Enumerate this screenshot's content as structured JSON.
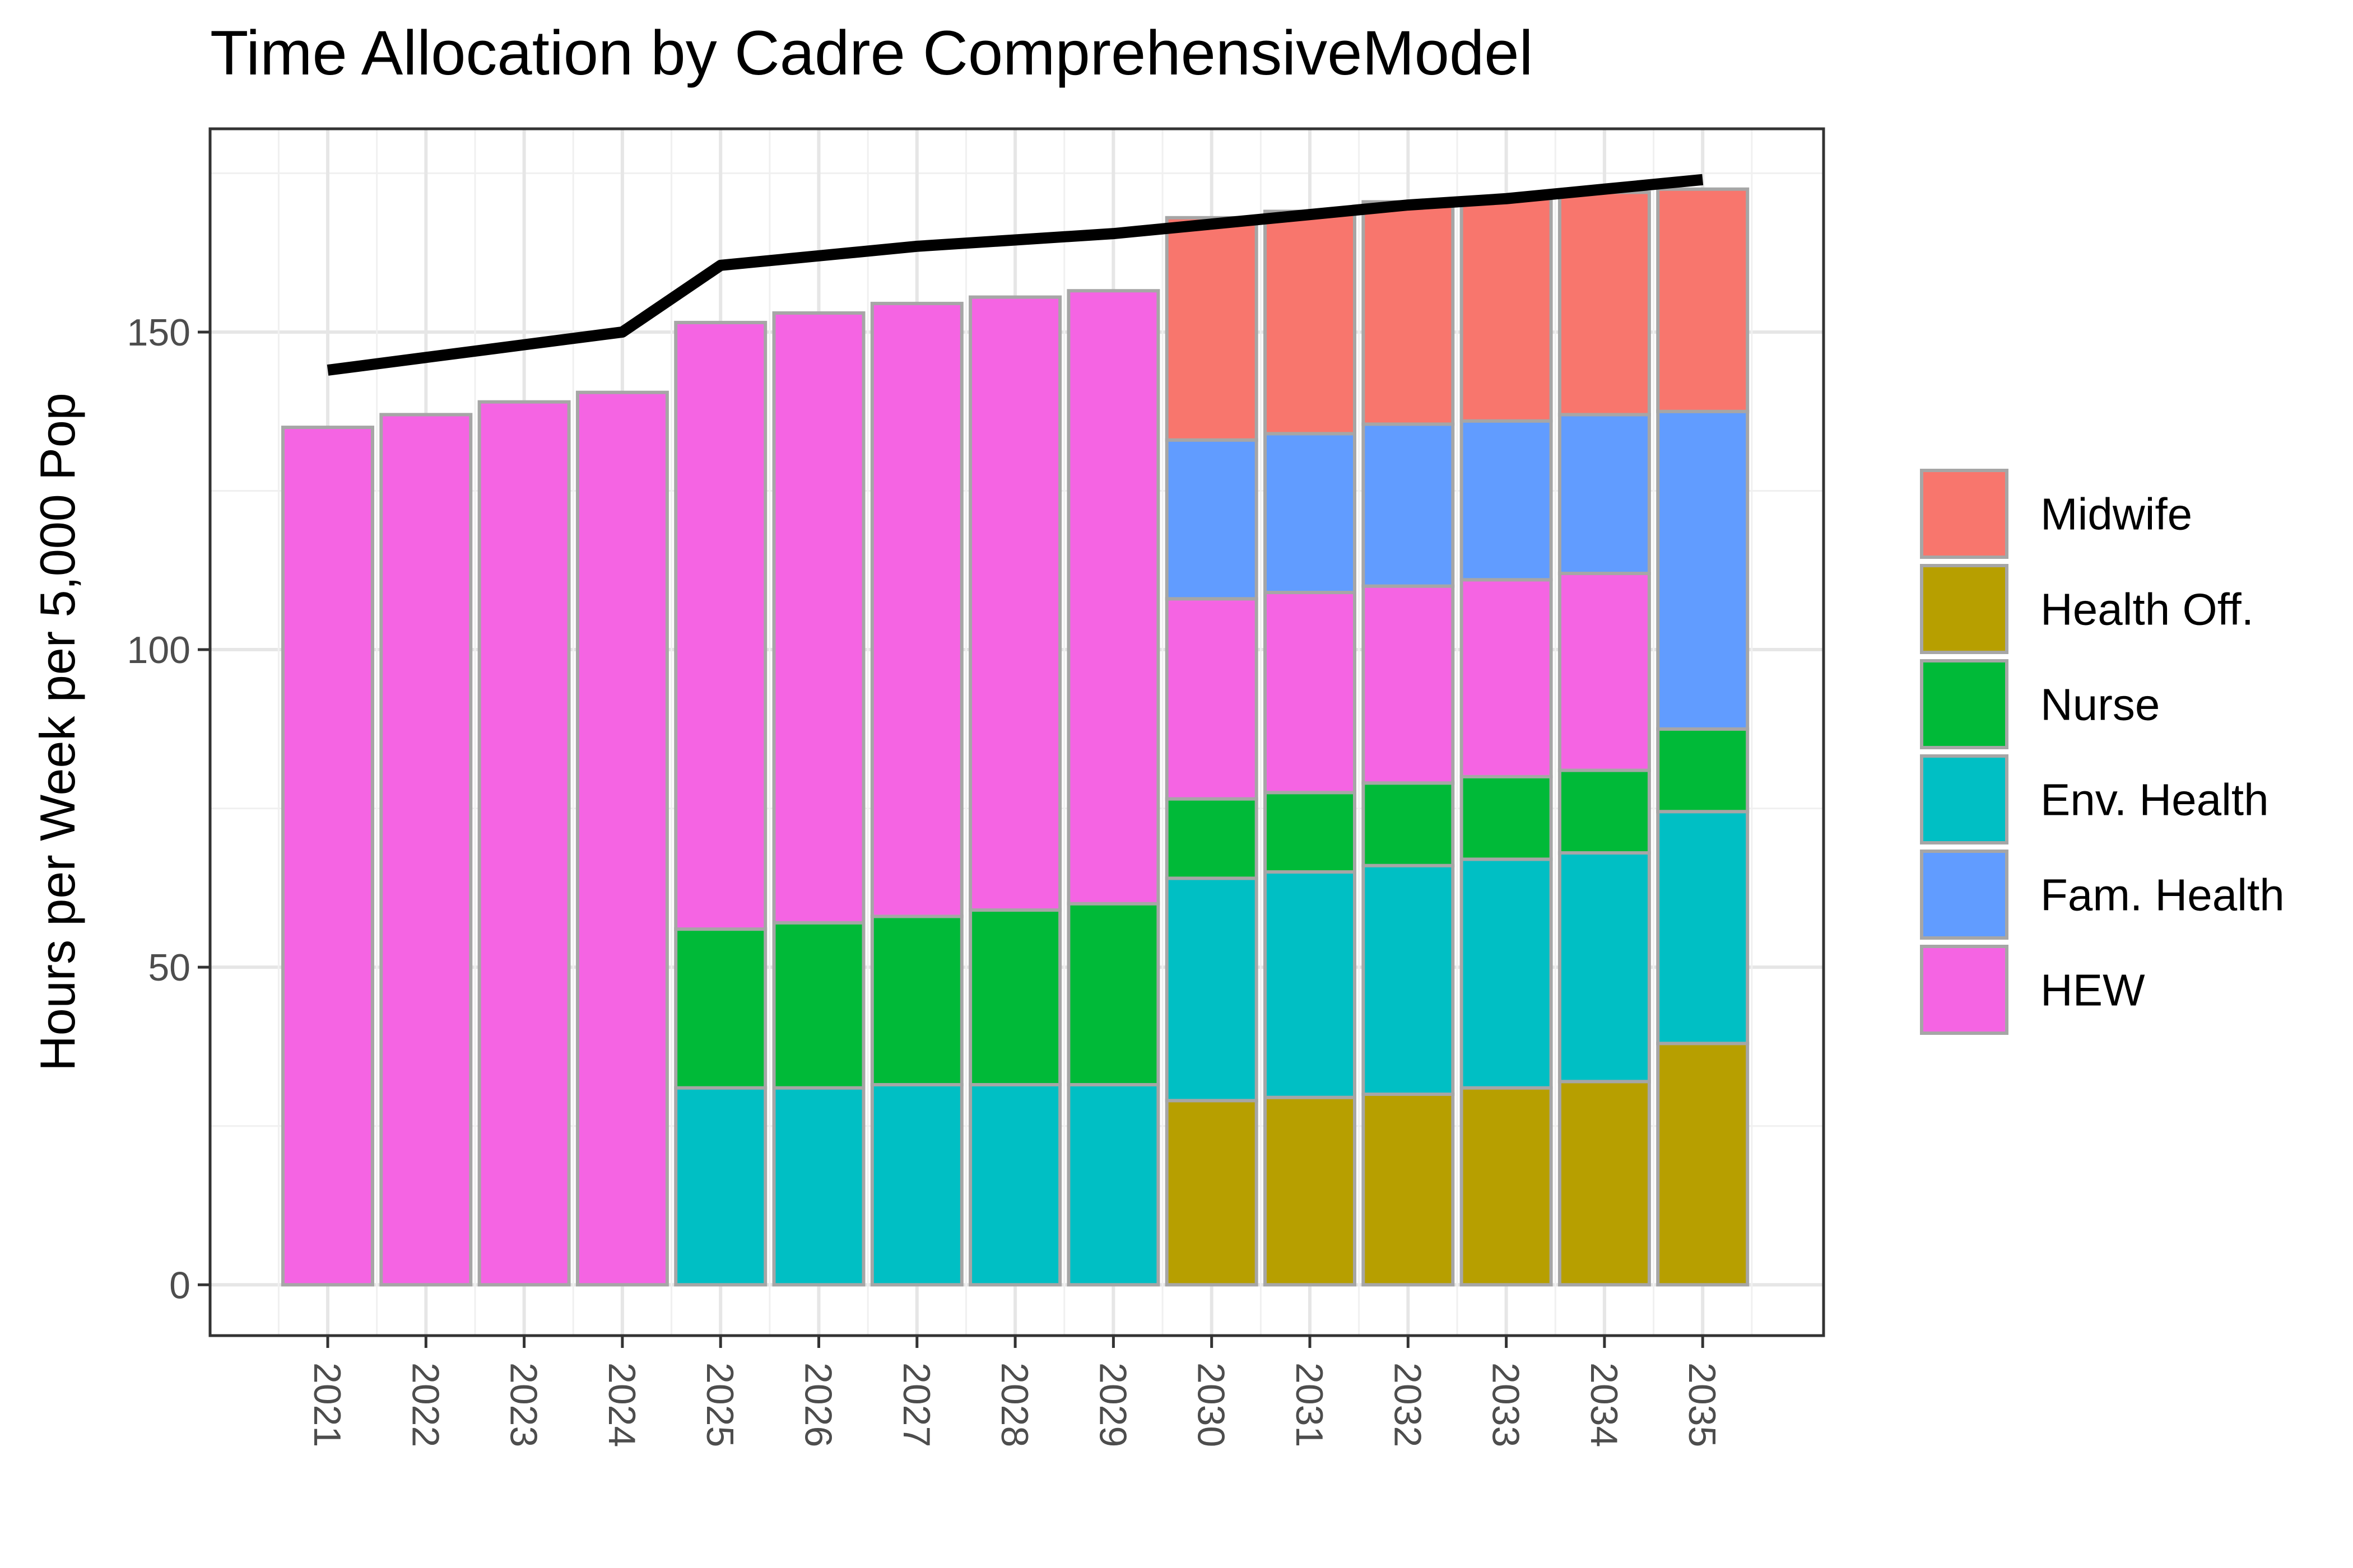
{
  "chart_data": {
    "type": "bar",
    "stacked": true,
    "title": "Time Allocation by Cadre ComprehensiveModel",
    "xlabel": "",
    "ylabel": "Hours per Week per 5,000 Pop",
    "categories": [
      "2021",
      "2022",
      "2023",
      "2024",
      "2025",
      "2026",
      "2027",
      "2028",
      "2029",
      "2030",
      "2031",
      "2032",
      "2033",
      "2034",
      "2035"
    ],
    "ylim": [
      -8,
      182
    ],
    "yticks": [
      0,
      50,
      100,
      150
    ],
    "ytick_labels": [
      "0",
      "50",
      "100",
      "150"
    ],
    "grid": true,
    "legend_position": "right",
    "stack_order_bottom_to_top": [
      "Health Off.",
      "Env. Health",
      "Nurse",
      "HEW",
      "Fam. Health",
      "Midwife"
    ],
    "series": [
      {
        "name": "Midwife",
        "color": "#F8766D",
        "values": [
          0,
          0,
          0,
          0,
          0,
          0,
          0,
          0,
          0,
          35,
          35,
          35,
          35,
          35,
          35
        ]
      },
      {
        "name": "Health Off.",
        "color": "#B79F00",
        "values": [
          0,
          0,
          0,
          0,
          0,
          0,
          0,
          0,
          0,
          29,
          29.5,
          30,
          31,
          32,
          38
        ]
      },
      {
        "name": "Nurse",
        "color": "#00BA38",
        "values": [
          0,
          0,
          0,
          0,
          25,
          26,
          26.5,
          27.5,
          28.5,
          12.5,
          12.5,
          13,
          13,
          13,
          13
        ]
      },
      {
        "name": "Env. Health",
        "color": "#00BFC4",
        "values": [
          0,
          0,
          0,
          0,
          31,
          31,
          31.5,
          31.5,
          31.5,
          35,
          35.5,
          36,
          36,
          36,
          36.5
        ]
      },
      {
        "name": "Fam. Health",
        "color": "#619CFF",
        "values": [
          0,
          0,
          0,
          0,
          0,
          0,
          0,
          0,
          0,
          25,
          25,
          25.5,
          25,
          25,
          50
        ]
      },
      {
        "name": "HEW",
        "color": "#F564E3",
        "values": [
          135,
          137,
          139,
          140.5,
          95.5,
          96,
          96.5,
          96.5,
          96.5,
          31.5,
          31.5,
          31,
          31,
          31,
          0
        ]
      }
    ],
    "total_line": {
      "color": "#000000",
      "values": [
        144,
        146,
        148,
        150,
        160.5,
        162,
        163.5,
        164.5,
        165.5,
        167,
        168.5,
        170,
        171,
        172.5,
        174
      ]
    }
  }
}
